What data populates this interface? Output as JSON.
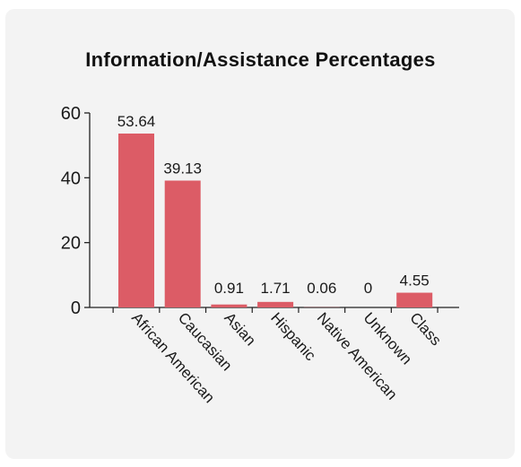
{
  "chart_data": {
    "type": "bar",
    "title": "Information/Assistance Percentages",
    "categories": [
      "African American",
      "Caucasian",
      "Asian",
      "Hispanic",
      "Native American",
      "Unknown",
      "Class"
    ],
    "values": [
      53.64,
      39.13,
      0.91,
      1.71,
      0.06,
      0,
      4.55
    ],
    "data_labels": [
      "53.64",
      "39.13",
      "0.91",
      "1.71",
      "0.06",
      "0",
      "4.55"
    ],
    "ylim": [
      0,
      60
    ],
    "yticks": [
      0,
      20,
      40,
      60
    ],
    "xlabel": "",
    "ylabel": "",
    "grid": false,
    "bar_color": "#dc5c66"
  }
}
